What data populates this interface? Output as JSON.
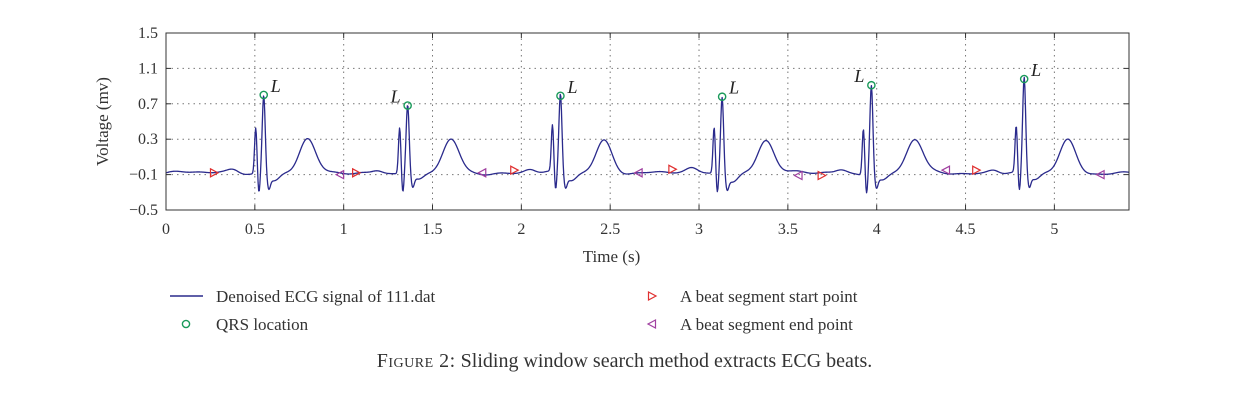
{
  "chart_data": {
    "type": "line",
    "xlabel": "Time (s)",
    "ylabel": "Voltage (mv)",
    "xlim": [
      0,
      5.42
    ],
    "ylim": [
      -0.5,
      1.5
    ],
    "xticks": [
      0,
      0.5,
      1,
      1.5,
      2,
      2.5,
      3,
      3.5,
      4,
      4.5,
      5
    ],
    "xtick_labels": [
      "0",
      "0.5",
      "1",
      "1.5",
      "2",
      "2.5",
      "3",
      "3.5",
      "4",
      "4.5",
      "5"
    ],
    "yticks": [
      -0.5,
      -0.1,
      0.3,
      0.7,
      1.1,
      1.5
    ],
    "ytick_labels": [
      "−0.5",
      "−0.1",
      "0.3",
      "0.7",
      "1.1",
      "1.5"
    ],
    "grid": "dotted",
    "series": [
      {
        "name": "Denoised ECG signal of 111.dat",
        "color": "#2a2a8c",
        "beat_times": [
          0.55,
          1.36,
          2.22,
          3.13,
          3.97,
          4.83
        ],
        "beat_peaks": [
          0.8,
          0.68,
          0.79,
          0.78,
          0.91,
          0.98
        ]
      },
      {
        "name": "QRS location",
        "color": "#1a9a5a",
        "x": [
          0.55,
          1.36,
          2.22,
          3.13,
          3.97,
          4.83
        ],
        "y": [
          0.8,
          0.68,
          0.79,
          0.78,
          0.91,
          0.98
        ],
        "labels": [
          "L",
          "L",
          "L",
          "L",
          "L",
          "L"
        ],
        "label_side": [
          "right",
          "left",
          "right",
          "right",
          "left",
          "right"
        ]
      },
      {
        "name": "A beat segment start point",
        "color": "#e03030",
        "x": [
          0.27,
          1.07,
          1.96,
          2.85,
          3.69,
          4.56
        ],
        "y": [
          -0.08,
          -0.08,
          -0.05,
          -0.04,
          -0.11,
          -0.05
        ]
      },
      {
        "name": "A beat segment end point",
        "color": "#a040a0",
        "x": [
          0.98,
          1.78,
          2.66,
          3.56,
          4.39,
          5.26
        ],
        "y": [
          -0.1,
          -0.08,
          -0.08,
          -0.11,
          -0.05,
          -0.1
        ]
      }
    ],
    "legend": [
      {
        "label": "Denoised ECG signal of 111.dat",
        "marker": "line"
      },
      {
        "label": "A beat segment start point",
        "marker": "triangle-right"
      },
      {
        "label": "QRS location",
        "marker": "circle"
      },
      {
        "label": "A beat segment end point",
        "marker": "triangle-left"
      }
    ],
    "legend_position": "bottom"
  },
  "caption": {
    "prefix": "Figure 2:",
    "text": " Sliding window search method extracts ECG beats."
  }
}
